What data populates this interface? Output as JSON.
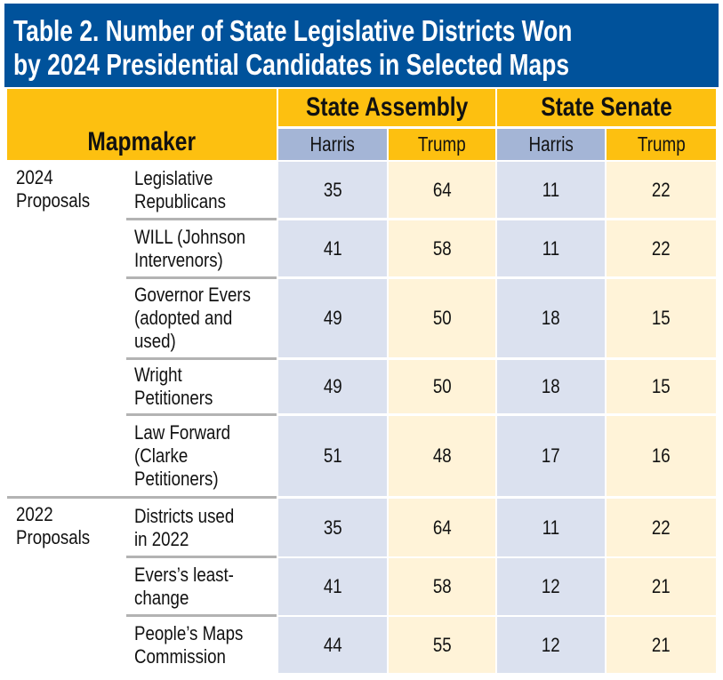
{
  "title": {
    "line1": "Table 2. Number of State Legislative Districts Won",
    "line2": "by 2024 Presidential Candidates in Selected Maps"
  },
  "header": {
    "mapmaker": "Mapmaker",
    "assembly": "State Assembly",
    "senate": "State Senate",
    "subcols": [
      "Harris",
      "Trump",
      "Harris",
      "Trump"
    ]
  },
  "colors": {
    "title_bg": "#00529b",
    "header_gold": "#fdc010",
    "harris_header": "#a4b5d6",
    "harris_cell": "#dbe1ef",
    "trump_cell": "#fff3d8"
  },
  "groups": [
    {
      "label": "2024\nProposals",
      "rows": [
        {
          "mapmaker": "Legislative\nRepublicans",
          "values": [
            "35",
            "64",
            "11",
            "22"
          ]
        },
        {
          "mapmaker": "WILL (Johnson\nIntervenors)",
          "values": [
            "41",
            "58",
            "11",
            "22"
          ]
        },
        {
          "mapmaker": "Governor Evers\n(adopted and\nused)",
          "values": [
            "49",
            "50",
            "18",
            "15"
          ]
        },
        {
          "mapmaker": "Wright\nPetitioners",
          "values": [
            "49",
            "50",
            "18",
            "15"
          ]
        },
        {
          "mapmaker": "Law Forward\n(Clarke\nPetitioners)",
          "values": [
            "51",
            "48",
            "17",
            "16"
          ]
        }
      ]
    },
    {
      "label": "2022\nProposals",
      "rows": [
        {
          "mapmaker": "Districts used\nin 2022",
          "values": [
            "35",
            "64",
            "11",
            "22"
          ]
        },
        {
          "mapmaker": "Evers’s least-\nchange",
          "values": [
            "41",
            "58",
            "12",
            "21"
          ]
        },
        {
          "mapmaker": "People’s Maps\nCommission",
          "values": [
            "44",
            "55",
            "12",
            "21"
          ]
        }
      ]
    }
  ]
}
